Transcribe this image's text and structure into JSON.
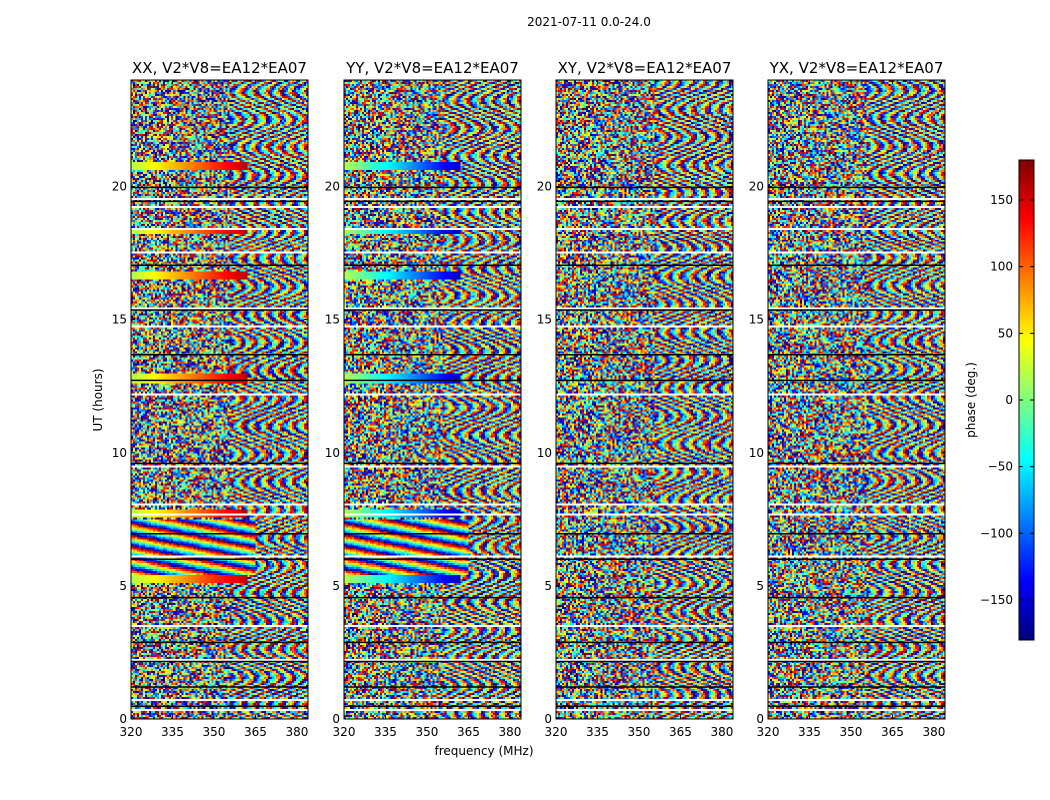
{
  "figure": {
    "suptitle": "2021-07-11 0.0-24.0"
  },
  "chart_data": {
    "type": "heatmap",
    "xlabel": "frequency (MHz)",
    "ylabel": "UT (hours)",
    "xlim": [
      320,
      384
    ],
    "ylim": [
      0,
      24
    ],
    "x_ticks": [
      320,
      335,
      350,
      365,
      380
    ],
    "y_ticks": [
      0,
      5,
      10,
      15,
      20
    ],
    "panels": [
      {
        "title": "XX, V2*V8=EA12*EA07",
        "polarization": "XX"
      },
      {
        "title": "YY, V2*V8=EA12*EA07",
        "polarization": "YY"
      },
      {
        "title": "XY, V2*V8=EA12*EA07",
        "polarization": "XY"
      },
      {
        "title": "YX, V2*V8=EA12*EA07",
        "polarization": "YX"
      }
    ],
    "colorbar": {
      "label": "phase (deg.)",
      "range": [
        -180,
        180
      ],
      "ticks": [
        150,
        100,
        50,
        0,
        -50,
        -100,
        -150
      ],
      "tick_labels": [
        "150",
        "100",
        "50",
        "0",
        "−50",
        "−100",
        "−150"
      ],
      "colormap": "jet",
      "colors": [
        "#00007f",
        "#0000ff",
        "#007fff",
        "#00ffff",
        "#7fff7f",
        "#ffff00",
        "#ff7f00",
        "#ff0000",
        "#7f0000"
      ]
    },
    "grid": false
  }
}
